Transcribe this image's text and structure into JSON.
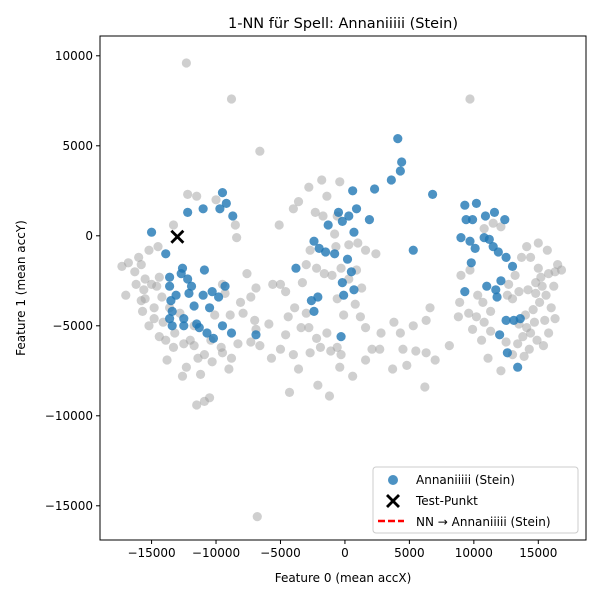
{
  "chart_data": {
    "type": "scatter",
    "title": "1-NN für Spell: Annaniiiii (Stein)",
    "xlabel": "Feature 0 (mean accX)",
    "ylabel": "Feature 1 (mean accY)",
    "xlim": [
      -19000,
      18700
    ],
    "ylim": [
      -16900,
      11100
    ],
    "xticks": [
      -15000,
      -10000,
      -5000,
      0,
      5000,
      10000,
      15000
    ],
    "xtick_labels": [
      "−15000",
      "−10000",
      "−5000",
      "0",
      "5000",
      "10000",
      "15000"
    ],
    "yticks": [
      10000,
      5000,
      0,
      -5000,
      -10000,
      -15000
    ],
    "ytick_labels": [
      "10000",
      "5000",
      "0",
      "−5000",
      "−10000",
      "−15000"
    ],
    "grid": false,
    "legend_position": "lower-right",
    "legend": {
      "class_label": "Annaniiiii (Stein)",
      "test_label": "Test-Punkt",
      "nn_label": "NN → Annaniiiii (Stein)"
    },
    "colors": {
      "class": "#1f77b4",
      "other": "#a0a0a0",
      "test": "#000000",
      "nn_line": "#ff0000"
    },
    "test_point": [
      -13000,
      -50
    ],
    "nearest_neighbor": [
      -12900,
      -90
    ],
    "class_points": [
      [
        -15000,
        200
      ],
      [
        -13900,
        -1000
      ],
      [
        -13600,
        -2300
      ],
      [
        -13600,
        -2800
      ],
      [
        -13500,
        -3600
      ],
      [
        -13400,
        -4200
      ],
      [
        -13600,
        -4600
      ],
      [
        -13400,
        -5000
      ],
      [
        -13100,
        -3300
      ],
      [
        -12700,
        -2100
      ],
      [
        -12600,
        -1800
      ],
      [
        -12500,
        -4600
      ],
      [
        -12500,
        -5000
      ],
      [
        -12200,
        -2400
      ],
      [
        -12100,
        -3200
      ],
      [
        -11900,
        -2800
      ],
      [
        -11700,
        -3900
      ],
      [
        -11500,
        -4900
      ],
      [
        -11300,
        -5100
      ],
      [
        -11000,
        -3300
      ],
      [
        -10900,
        -1900
      ],
      [
        -10700,
        -5400
      ],
      [
        -10500,
        -4000
      ],
      [
        -10300,
        -3100
      ],
      [
        -10200,
        -5700
      ],
      [
        -9800,
        -3400
      ],
      [
        -9500,
        -5000
      ],
      [
        -9300,
        -2800
      ],
      [
        -8800,
        -5400
      ],
      [
        -12200,
        1300
      ],
      [
        -11000,
        1500
      ],
      [
        -9700,
        1500
      ],
      [
        -9500,
        2400
      ],
      [
        -9200,
        1800
      ],
      [
        -8700,
        1100
      ],
      [
        -6900,
        -5500
      ],
      [
        -2600,
        -3600
      ],
      [
        -2400,
        -4200
      ],
      [
        -2100,
        -3400
      ],
      [
        -2400,
        -300
      ],
      [
        -2000,
        -700
      ],
      [
        -1500,
        -900
      ],
      [
        -800,
        -1000
      ],
      [
        -500,
        1300
      ],
      [
        -1300,
        600
      ],
      [
        -200,
        -2600
      ],
      [
        -100,
        -3300
      ],
      [
        700,
        -3000
      ],
      [
        700,
        200
      ],
      [
        500,
        -2000
      ],
      [
        200,
        -1300
      ],
      [
        -200,
        800
      ],
      [
        300,
        1100
      ],
      [
        900,
        1500
      ],
      [
        1900,
        900
      ],
      [
        600,
        2500
      ],
      [
        2300,
        2600
      ],
      [
        3600,
        3100
      ],
      [
        4300,
        3600
      ],
      [
        4400,
        4100
      ],
      [
        4100,
        5400
      ],
      [
        6800,
        2300
      ],
      [
        5300,
        -800
      ],
      [
        -3800,
        -1800
      ],
      [
        -300,
        -5600
      ],
      [
        9300,
        1700
      ],
      [
        10200,
        1800
      ],
      [
        10900,
        1100
      ],
      [
        9400,
        900
      ],
      [
        9900,
        900
      ],
      [
        11600,
        1300
      ],
      [
        12400,
        900
      ],
      [
        9000,
        -100
      ],
      [
        9700,
        -300
      ],
      [
        10100,
        -700
      ],
      [
        10800,
        -100
      ],
      [
        11200,
        -200
      ],
      [
        11500,
        -600
      ],
      [
        11900,
        -900
      ],
      [
        12500,
        -1200
      ],
      [
        13000,
        -1700
      ],
      [
        9800,
        -1500
      ],
      [
        9300,
        -3100
      ],
      [
        11000,
        -2800
      ],
      [
        11700,
        -3000
      ],
      [
        12100,
        -2500
      ],
      [
        13100,
        -4700
      ],
      [
        13600,
        -4600
      ],
      [
        12000,
        -5500
      ],
      [
        12600,
        -6500
      ],
      [
        13400,
        -7300
      ],
      [
        12500,
        -4700
      ],
      [
        11800,
        -3400
      ]
    ],
    "other_points": [
      [
        -12300,
        9600
      ],
      [
        -8800,
        7600
      ],
      [
        -6600,
        4700
      ],
      [
        9700,
        7600
      ],
      [
        -1800,
        3100
      ],
      [
        -12200,
        2300
      ],
      [
        -11500,
        2200
      ],
      [
        -10000,
        2000
      ],
      [
        -4000,
        1500
      ],
      [
        -3600,
        1900
      ],
      [
        -2800,
        2700
      ],
      [
        -1400,
        2200
      ],
      [
        -400,
        3000
      ],
      [
        -8500,
        600
      ],
      [
        -5100,
        600
      ],
      [
        -2300,
        1300
      ],
      [
        -1700,
        1100
      ],
      [
        -600,
        1100
      ],
      [
        -8400,
        -100
      ],
      [
        -13300,
        600
      ],
      [
        -14500,
        -600
      ],
      [
        -15200,
        -800
      ],
      [
        -16000,
        -1200
      ],
      [
        -16800,
        -1500
      ],
      [
        -17300,
        -1700
      ],
      [
        -15800,
        -1600
      ],
      [
        -16300,
        -2000
      ],
      [
        -15500,
        -2400
      ],
      [
        -15000,
        -2700
      ],
      [
        -14600,
        -2800
      ],
      [
        -15600,
        -3000
      ],
      [
        -17000,
        -3300
      ],
      [
        -15800,
        -3600
      ],
      [
        -14200,
        -3400
      ],
      [
        -14800,
        -4000
      ],
      [
        -15700,
        -4200
      ],
      [
        -14100,
        -4800
      ],
      [
        -15200,
        -5000
      ],
      [
        -14400,
        -5600
      ],
      [
        -13900,
        -5800
      ],
      [
        -12800,
        -4300
      ],
      [
        -12000,
        -5800
      ],
      [
        -11700,
        -6100
      ],
      [
        -11400,
        -6800
      ],
      [
        -10900,
        -6600
      ],
      [
        -12300,
        -7300
      ],
      [
        -11200,
        -7700
      ],
      [
        -12600,
        -7800
      ],
      [
        -10900,
        -9200
      ],
      [
        -10500,
        -9000
      ],
      [
        -11500,
        -9400
      ],
      [
        -9600,
        -6200
      ],
      [
        -8800,
        -6800
      ],
      [
        -8300,
        -6000
      ],
      [
        -8900,
        -4400
      ],
      [
        -7900,
        -4300
      ],
      [
        -7000,
        -4700
      ],
      [
        -7300,
        -5900
      ],
      [
        -7600,
        -2100
      ],
      [
        -6900,
        -2900
      ],
      [
        -5600,
        -2700
      ],
      [
        -5000,
        -2700
      ],
      [
        -4600,
        -3100
      ],
      [
        -4400,
        -4500
      ],
      [
        -4600,
        -5500
      ],
      [
        -5000,
        -6300
      ],
      [
        -5700,
        -6800
      ],
      [
        -4000,
        -6600
      ],
      [
        -3600,
        -7400
      ],
      [
        -3400,
        -5100
      ],
      [
        -3000,
        -4300
      ],
      [
        -2800,
        -5100
      ],
      [
        -2200,
        -5700
      ],
      [
        -2700,
        -6500
      ],
      [
        -1900,
        -6200
      ],
      [
        -1400,
        -5400
      ],
      [
        -1100,
        -6400
      ],
      [
        -600,
        -6200
      ],
      [
        -300,
        -6600
      ],
      [
        -2100,
        -8300
      ],
      [
        -1200,
        -8900
      ],
      [
        -4300,
        -8700
      ],
      [
        -6800,
        -15600
      ],
      [
        -9500,
        -6500
      ],
      [
        -10100,
        -4400
      ],
      [
        -9300,
        -3200
      ],
      [
        -8100,
        -3700
      ],
      [
        -12500,
        -6000
      ],
      [
        -13800,
        -6900
      ],
      [
        -13300,
        -6200
      ],
      [
        -3000,
        -1600
      ],
      [
        -2200,
        -1800
      ],
      [
        -1600,
        -2100
      ],
      [
        -1000,
        -2200
      ],
      [
        -300,
        -1800
      ],
      [
        300,
        -2400
      ],
      [
        900,
        -1900
      ],
      [
        1300,
        -2900
      ],
      [
        800,
        -3800
      ],
      [
        -100,
        -4400
      ],
      [
        -600,
        -3500
      ],
      [
        1200,
        -4500
      ],
      [
        1600,
        -5100
      ],
      [
        2800,
        -5400
      ],
      [
        3800,
        -4800
      ],
      [
        4300,
        -5400
      ],
      [
        5300,
        -5000
      ],
      [
        6300,
        -4700
      ],
      [
        6600,
        -4000
      ],
      [
        4500,
        -6300
      ],
      [
        5500,
        -6400
      ],
      [
        6300,
        -6500
      ],
      [
        7000,
        -6900
      ],
      [
        8100,
        -6100
      ],
      [
        4800,
        -7200
      ],
      [
        3700,
        -7400
      ],
      [
        6200,
        -8400
      ],
      [
        1600,
        -6900
      ],
      [
        2100,
        -6300
      ],
      [
        2700,
        -6300
      ],
      [
        600,
        -7800
      ],
      [
        -400,
        -7300
      ],
      [
        -700,
        -600
      ],
      [
        300,
        -500
      ],
      [
        -800,
        100
      ],
      [
        1000,
        -400
      ],
      [
        1600,
        -800
      ],
      [
        2400,
        -1000
      ],
      [
        -2700,
        -800
      ],
      [
        -3300,
        -2600
      ],
      [
        12600,
        -3300
      ],
      [
        13000,
        -3500
      ],
      [
        13500,
        -3100
      ],
      [
        14200,
        -3000
      ],
      [
        14800,
        -2600
      ],
      [
        15200,
        -2300
      ],
      [
        15800,
        -2100
      ],
      [
        16300,
        -2000
      ],
      [
        16800,
        -1900
      ],
      [
        16200,
        -2800
      ],
      [
        15600,
        -3300
      ],
      [
        15100,
        -3700
      ],
      [
        14600,
        -4100
      ],
      [
        14000,
        -4400
      ],
      [
        13500,
        -4900
      ],
      [
        14400,
        -5400
      ],
      [
        14900,
        -5800
      ],
      [
        15400,
        -6100
      ],
      [
        15800,
        -5400
      ],
      [
        16300,
        -4600
      ],
      [
        16000,
        -4000
      ],
      [
        15500,
        -4700
      ],
      [
        14700,
        -4800
      ],
      [
        14100,
        -5100
      ],
      [
        13800,
        -5600
      ],
      [
        14300,
        -6300
      ],
      [
        13900,
        -6700
      ],
      [
        13000,
        -6600
      ],
      [
        12500,
        -5900
      ],
      [
        11300,
        -5300
      ],
      [
        10800,
        -4800
      ],
      [
        10200,
        -4500
      ],
      [
        9900,
        -5200
      ],
      [
        10600,
        -5800
      ],
      [
        11100,
        -6800
      ],
      [
        12100,
        -7500
      ],
      [
        13400,
        -6000
      ],
      [
        15000,
        -1800
      ],
      [
        14400,
        -1200
      ],
      [
        14100,
        -600
      ],
      [
        15000,
        -400
      ],
      [
        15700,
        -800
      ],
      [
        16500,
        -1600
      ],
      [
        14800,
        -3200
      ],
      [
        15300,
        -2800
      ],
      [
        13200,
        -2200
      ],
      [
        12700,
        -2700
      ],
      [
        13700,
        -1200
      ],
      [
        12100,
        500
      ],
      [
        11500,
        700
      ],
      [
        10800,
        400
      ],
      [
        9700,
        -1900
      ],
      [
        9000,
        -2200
      ],
      [
        10300,
        -3300
      ],
      [
        10700,
        -3700
      ],
      [
        11300,
        -4200
      ],
      [
        9600,
        -4300
      ],
      [
        8900,
        -3700
      ],
      [
        8800,
        -4500
      ],
      [
        -6900,
        -5200
      ],
      [
        -5900,
        -4900
      ],
      [
        -6600,
        -6100
      ],
      [
        -9000,
        -7400
      ],
      [
        -10300,
        -7000
      ],
      [
        -10400,
        -5800
      ],
      [
        -11700,
        -5000
      ],
      [
        -13200,
        -5400
      ],
      [
        -13600,
        -4000
      ],
      [
        -14800,
        -4600
      ],
      [
        -15500,
        -3500
      ],
      [
        -16200,
        -2700
      ],
      [
        -14400,
        -2300
      ],
      [
        -9500,
        -2700
      ],
      [
        -7300,
        -3400
      ],
      [
        -3900,
        -4000
      ]
    ]
  }
}
